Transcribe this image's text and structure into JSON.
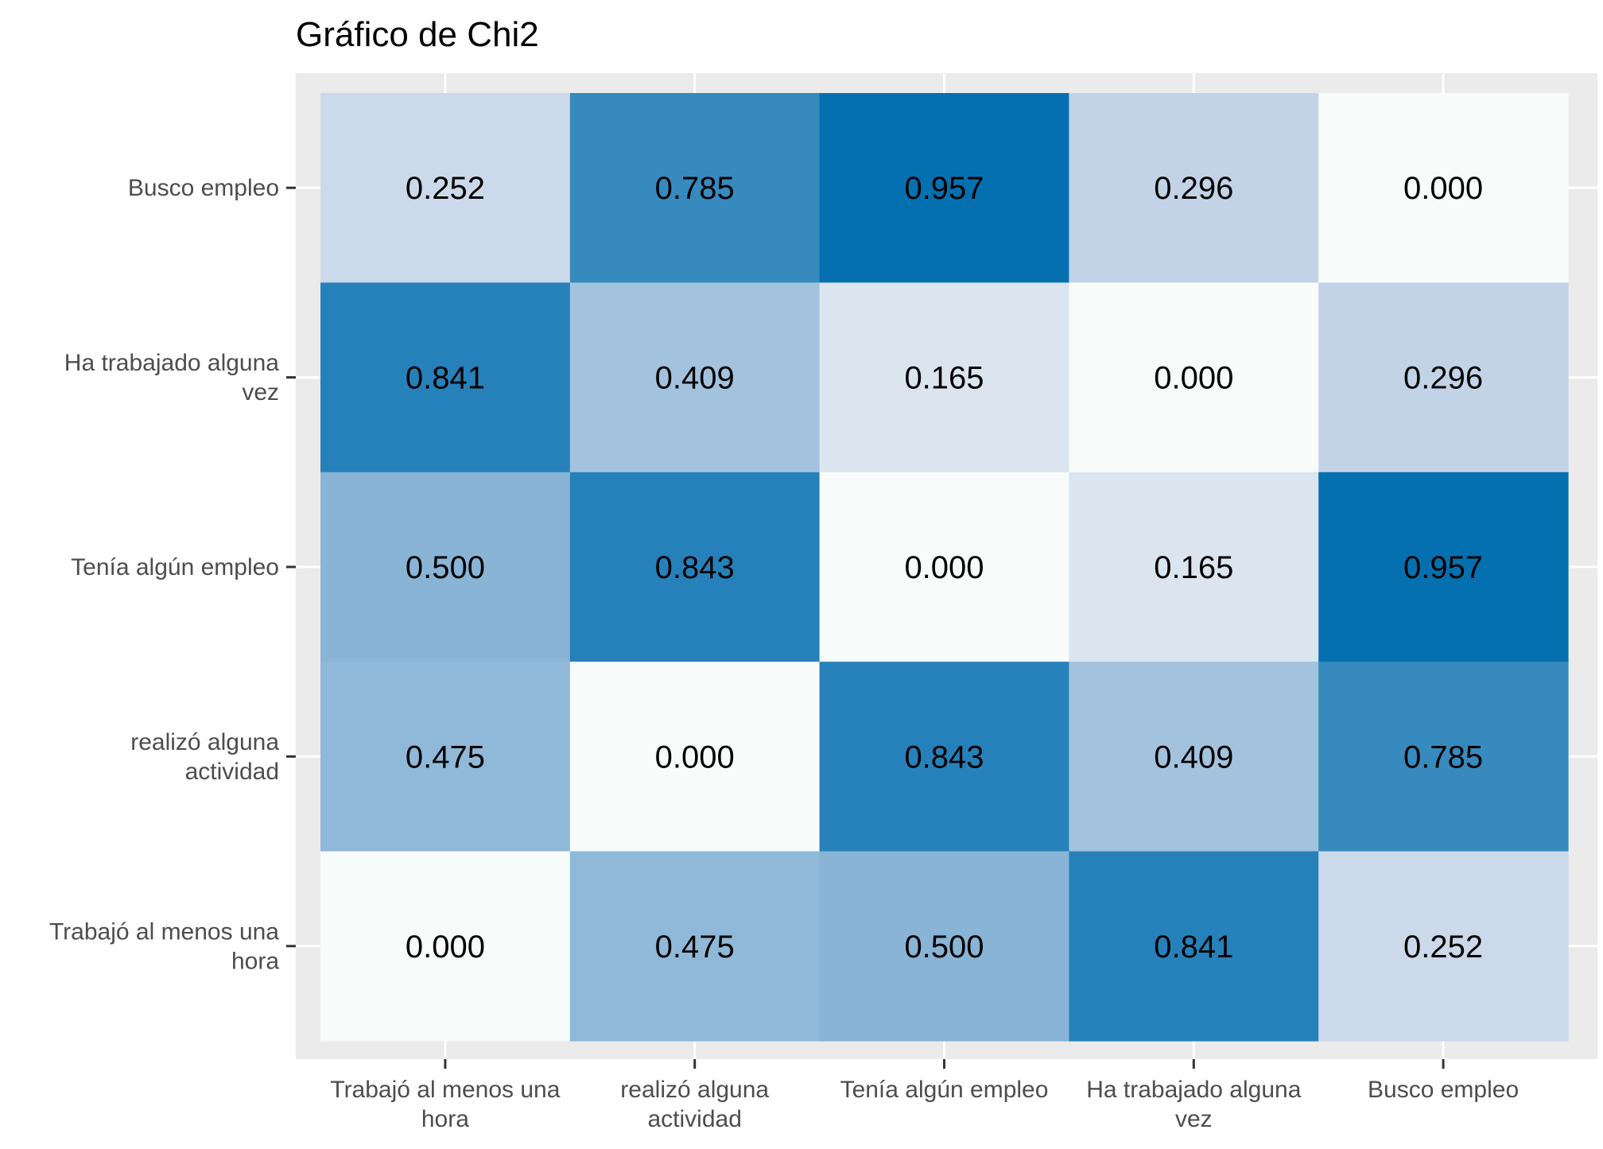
{
  "chart_data": {
    "type": "heatmap",
    "title": "Gráfico de Chi2",
    "xlabel": "",
    "ylabel": "",
    "x_categories": [
      "Trabajó al menos una hora",
      "realizó alguna actividad",
      "Tenía algún empleo",
      "Ha trabajado alguna vez",
      "Busco empleo"
    ],
    "x_tick_labels": [
      [
        "Trabajó al menos una",
        "hora"
      ],
      [
        "realizó alguna",
        "actividad"
      ],
      [
        "Tenía algún empleo"
      ],
      [
        "Ha trabajado alguna",
        "vez"
      ],
      [
        "Busco empleo"
      ]
    ],
    "y_categories_top_to_bottom": [
      "Busco empleo",
      "Ha trabajado alguna vez",
      "Tenía algún empleo",
      "realizó alguna actividad",
      "Trabajó al menos una hora"
    ],
    "y_tick_labels_top_to_bottom": [
      [
        "Busco empleo"
      ],
      [
        "Ha trabajado alguna",
        "vez"
      ],
      [
        "Tenía algún empleo"
      ],
      [
        "realizó alguna",
        "actividad"
      ],
      [
        "Trabajó al menos una",
        "hora"
      ]
    ],
    "values_top_to_bottom": [
      [
        0.252,
        0.785,
        0.957,
        0.296,
        0.0
      ],
      [
        0.841,
        0.409,
        0.165,
        0.0,
        0.296
      ],
      [
        0.5,
        0.843,
        0.0,
        0.165,
        0.957
      ],
      [
        0.475,
        0.0,
        0.843,
        0.409,
        0.785
      ],
      [
        0.0,
        0.475,
        0.5,
        0.841,
        0.252
      ]
    ],
    "value_labels_top_to_bottom": [
      [
        "0.252",
        "0.785",
        "0.957",
        "0.296",
        "0.000"
      ],
      [
        "0.841",
        "0.409",
        "0.165",
        "0.000",
        "0.296"
      ],
      [
        "0.500",
        "0.843",
        "0.000",
        "0.165",
        "0.957"
      ],
      [
        "0.475",
        "0.000",
        "0.843",
        "0.409",
        "0.785"
      ],
      [
        "0.000",
        "0.475",
        "0.500",
        "0.841",
        "0.252"
      ]
    ],
    "color_scale": {
      "low_value": 0,
      "high_value": 0.957,
      "low_color": "#f7fbfa",
      "mid_color": "#c6d4e8",
      "high_color": "#0570b0"
    },
    "grid": true,
    "legend": "none"
  },
  "colors": {
    "panel_background": "#ebebeb",
    "grid_line": "#ffffff",
    "tick_color": "#333333",
    "tick_label": "#4d4d4d",
    "title": "#000000",
    "cell_text": "#000000"
  }
}
